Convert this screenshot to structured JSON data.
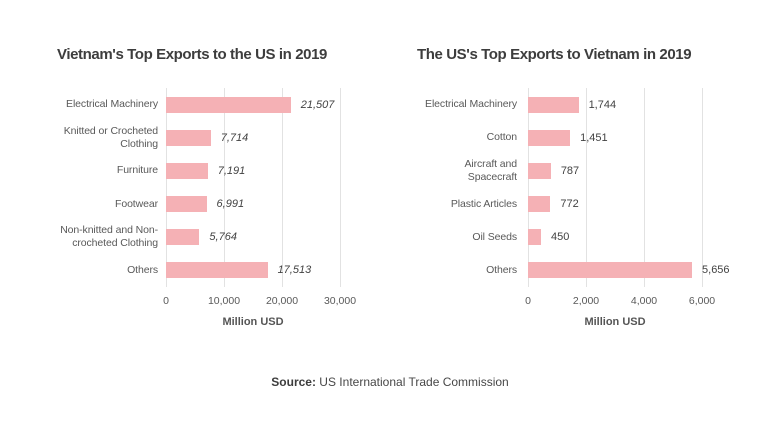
{
  "page": {
    "background": "#ffffff",
    "footer": {
      "source_label": "Source:",
      "source_text": " US International Trade Commission"
    }
  },
  "colors": {
    "bar": "#f5b1b5",
    "title_text": "#3d3d3d",
    "category_text": "#595959",
    "value_text": "#424242",
    "tick_text": "#595959",
    "gridline": "#e2e2e2",
    "footer_text": "#474747"
  },
  "chart_data": [
    {
      "type": "bar",
      "orientation": "horizontal",
      "title": "Vietnam's Top Exports to the US in 2019",
      "xlabel": "Million USD",
      "xlim": [
        0,
        30000
      ],
      "xticks": [
        0,
        10000,
        20000,
        30000
      ],
      "xtick_labels": [
        "0",
        "10,000",
        "20,000",
        "30,000"
      ],
      "categories": [
        "Electrical Machinery",
        "Knitted or Crocheted Clothing",
        "Furniture",
        "Footwear",
        "Non-knitted and Non-crocheted Clothing",
        "Others"
      ],
      "category_lines": [
        [
          "Electrical Machinery"
        ],
        [
          "Knitted or Crocheted",
          "Clothing"
        ],
        [
          "Furniture"
        ],
        [
          "Footwear"
        ],
        [
          "Non-knitted and Non-",
          "crocheted Clothing"
        ],
        [
          "Others"
        ]
      ],
      "values": [
        21507,
        7714,
        7191,
        6991,
        5764,
        17513
      ],
      "value_labels": [
        "21,507",
        "7,714",
        "7,191",
        "6,991",
        "5,764",
        "17,513"
      ],
      "value_label_style": "italic",
      "grid": true,
      "legend": false
    },
    {
      "type": "bar",
      "orientation": "horizontal",
      "title": "The US's Top Exports to Vietnam in 2019",
      "xlabel": "Million USD",
      "xlim": [
        0,
        6000
      ],
      "xticks": [
        0,
        2000,
        4000,
        6000
      ],
      "xtick_labels": [
        "0",
        "2,000",
        "4,000",
        "6,000"
      ],
      "categories": [
        "Electrical Machinery",
        "Cotton",
        "Aircraft and Spacecraft",
        "Plastic Articles",
        "Oil Seeds",
        "Others"
      ],
      "category_lines": [
        [
          "Electrical Machinery"
        ],
        [
          "Cotton"
        ],
        [
          "Aircraft and",
          "Spacecraft"
        ],
        [
          "Plastic Articles"
        ],
        [
          "Oil Seeds"
        ],
        [
          "Others"
        ]
      ],
      "values": [
        1744,
        1451,
        787,
        772,
        450,
        5656
      ],
      "value_labels": [
        "1,744",
        "1,451",
        "787",
        "772",
        "450",
        "5,656"
      ],
      "value_label_style": "normal",
      "grid": true,
      "legend": false
    }
  ]
}
